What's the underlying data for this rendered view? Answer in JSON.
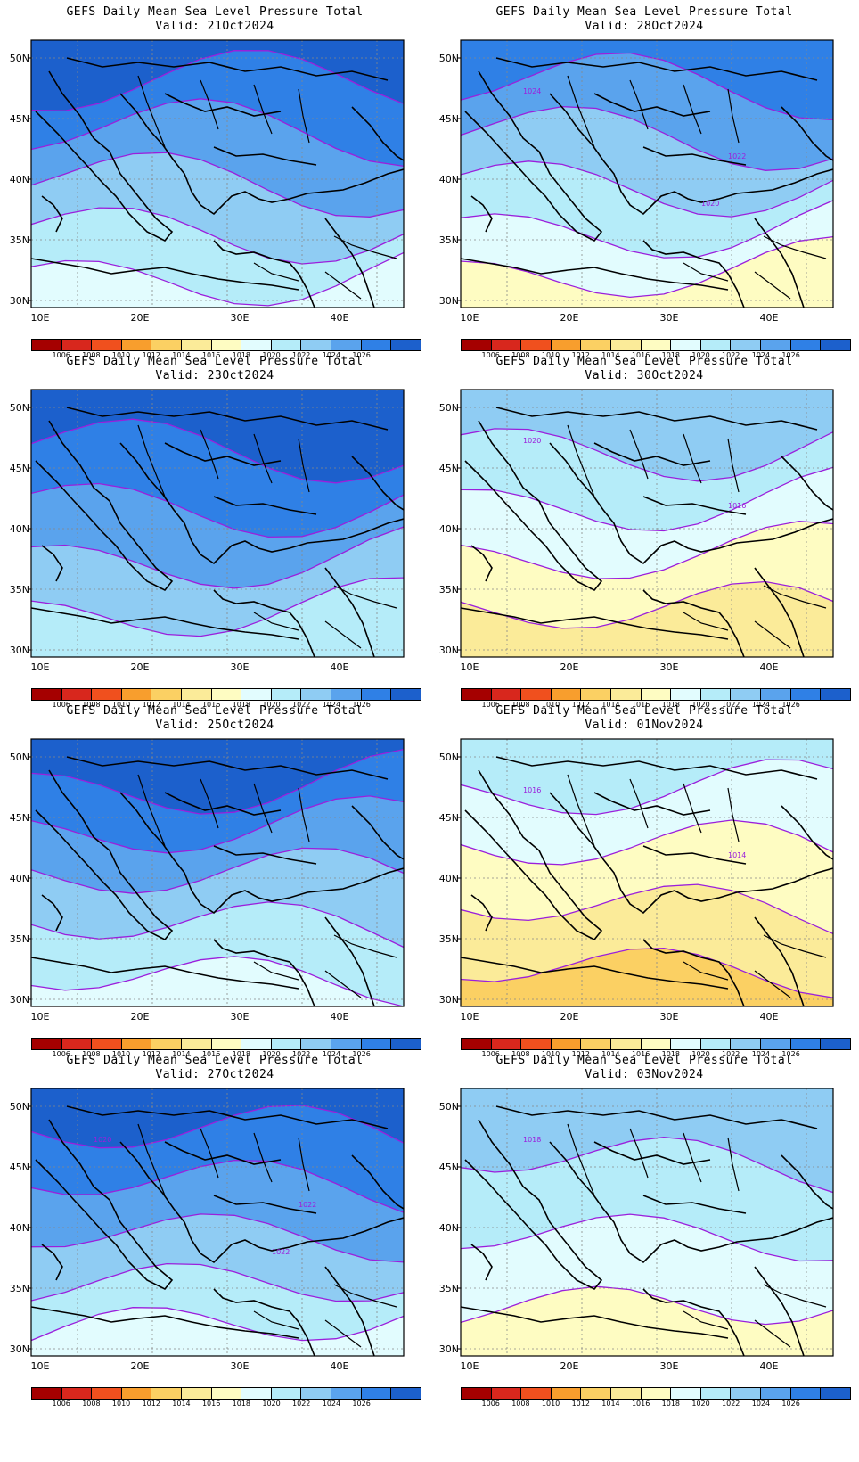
{
  "panels": [
    {
      "title": "GEFS Daily Mean Sea Level Pressure Total",
      "valid": "Valid: 21Oct2024",
      "col": 0,
      "row": 0,
      "base": 5,
      "contours": []
    },
    {
      "title": "GEFS Daily Mean Sea Level Pressure Total",
      "valid": "Valid: 28Oct2024",
      "col": 1,
      "row": 0,
      "base": 4,
      "contours": [
        "1024",
        "1022",
        "1020"
      ]
    },
    {
      "title": "GEFS Daily Mean Sea Level Pressure Total",
      "valid": "Valid: 23Oct2024",
      "col": 0,
      "row": 1,
      "base": 5,
      "contours": []
    },
    {
      "title": "GEFS Daily Mean Sea Level Pressure Total",
      "valid": "Valid: 30Oct2024",
      "col": 1,
      "row": 1,
      "base": 1,
      "contours": [
        "1020",
        "1016"
      ]
    },
    {
      "title": "GEFS Daily Mean Sea Level Pressure Total",
      "valid": "Valid: 25Oct2024",
      "col": 0,
      "row": 2,
      "base": 5,
      "contours": []
    },
    {
      "title": "GEFS Daily Mean Sea Level Pressure Total",
      "valid": "Valid: 01Nov2024",
      "col": 1,
      "row": 2,
      "base": 0,
      "contours": [
        "1016",
        "1014"
      ]
    },
    {
      "title": "GEFS Daily Mean Sea Level Pressure Total",
      "valid": "Valid: 27Oct2024",
      "col": 0,
      "row": 3,
      "base": 4,
      "contours": [
        "1020",
        "1022",
        "1022"
      ]
    },
    {
      "title": "GEFS Daily Mean Sea Level Pressure Total",
      "valid": "Valid: 03Nov2024",
      "col": 1,
      "row": 3,
      "base": 2,
      "contours": [
        "1018"
      ]
    }
  ],
  "lat_labels": [
    "50N",
    "45N",
    "40N",
    "35N",
    "30N"
  ],
  "lon_labels": [
    "10E",
    "20E",
    "30E",
    "40E"
  ],
  "colorbar": {
    "labels": [
      "1006",
      "1008",
      "1010",
      "1012",
      "1014",
      "1016",
      "1018",
      "1020",
      "1022",
      "1024",
      "1026"
    ],
    "colors": [
      "#a50000",
      "#d8271d",
      "#f0501e",
      "#f89e2d",
      "#fbd063",
      "#fbeb99",
      "#fefcc2",
      "#e2fcfe",
      "#b5ecf9",
      "#8fccf3",
      "#5aa3ed",
      "#2f80e6",
      "#1c60cc"
    ]
  },
  "contour_color": "#9b1fdc"
}
